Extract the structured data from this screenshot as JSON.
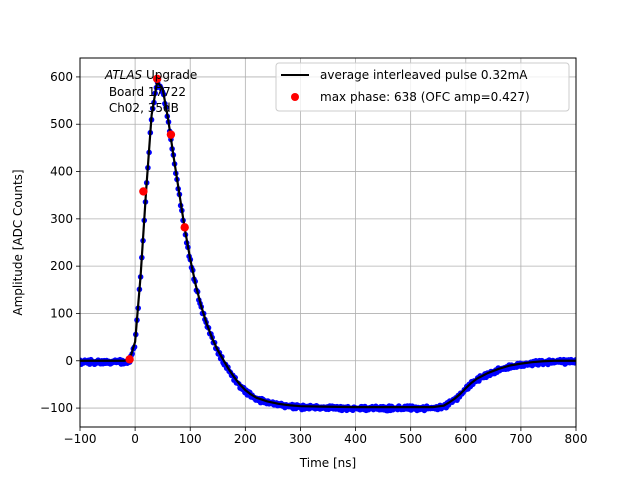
{
  "chart_data": {
    "type": "scatter",
    "xlabel": "Time [ns]",
    "ylabel": "Amplitude [ADC Counts]",
    "xlim": [
      -100,
      800
    ],
    "ylim": [
      -140,
      640
    ],
    "xticks": [
      -100,
      0,
      100,
      200,
      300,
      400,
      500,
      600,
      700,
      800
    ],
    "yticks": [
      -100,
      0,
      100,
      200,
      300,
      400,
      500,
      600
    ],
    "grid": true,
    "legend_position": "top-right",
    "annotation": {
      "line1_italic": "ATLAS",
      "line1_rest": " Upgrade",
      "line2": " Board 17722",
      "line3": " Ch02, 35dB"
    },
    "series": [
      {
        "name": "average interleaved pulse 0.32mA",
        "type": "line",
        "color": "#000000",
        "points": [
          [
            -100,
            0
          ],
          [
            -20,
            0
          ],
          [
            -10,
            2
          ],
          [
            0,
            40
          ],
          [
            10,
            180
          ],
          [
            20,
            360
          ],
          [
            30,
            520
          ],
          [
            40,
            590
          ],
          [
            50,
            575
          ],
          [
            60,
            510
          ],
          [
            70,
            430
          ],
          [
            80,
            355
          ],
          [
            90,
            280
          ],
          [
            100,
            215
          ],
          [
            110,
            160
          ],
          [
            120,
            115
          ],
          [
            130,
            78
          ],
          [
            140,
            47
          ],
          [
            150,
            22
          ],
          [
            160,
            2
          ],
          [
            170,
            -18
          ],
          [
            180,
            -35
          ],
          [
            190,
            -50
          ],
          [
            200,
            -62
          ],
          [
            210,
            -71
          ],
          [
            220,
            -78
          ],
          [
            240,
            -86
          ],
          [
            260,
            -91
          ],
          [
            280,
            -94
          ],
          [
            300,
            -96
          ],
          [
            340,
            -97
          ],
          [
            400,
            -98
          ],
          [
            450,
            -98
          ],
          [
            500,
            -98
          ],
          [
            540,
            -98
          ],
          [
            560,
            -95
          ],
          [
            570,
            -88
          ],
          [
            580,
            -80
          ],
          [
            590,
            -70
          ],
          [
            600,
            -58
          ],
          [
            610,
            -47
          ],
          [
            620,
            -38
          ],
          [
            640,
            -26
          ],
          [
            660,
            -17
          ],
          [
            680,
            -10
          ],
          [
            700,
            -6
          ],
          [
            720,
            -3
          ],
          [
            740,
            -1
          ],
          [
            760,
            0
          ],
          [
            800,
            0
          ]
        ]
      },
      {
        "name": "max phase: 638 (OFC amp=0.427)",
        "type": "scatter",
        "color": "#ff0000",
        "points": [
          [
            -10,
            3
          ],
          [
            15,
            358
          ],
          [
            40,
            596
          ],
          [
            65,
            478
          ],
          [
            90,
            282
          ]
        ]
      }
    ],
    "sample_markers_color": "#0000ff"
  }
}
